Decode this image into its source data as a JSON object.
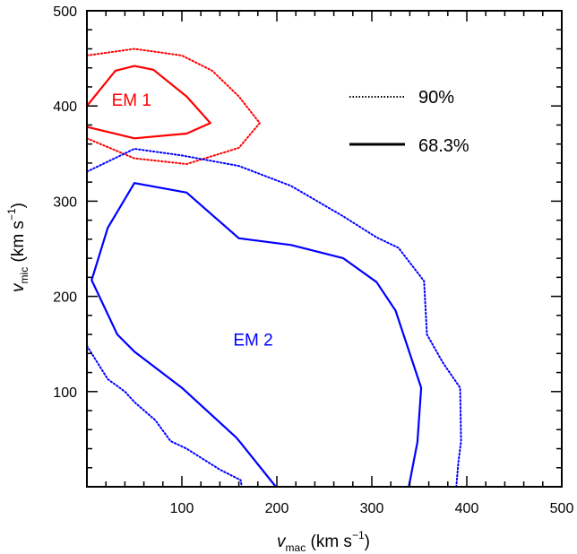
{
  "chart_data": {
    "type": "line",
    "xlabel": {
      "symbol": "v",
      "sub": "mac",
      "unit_pre": " (km s",
      "sup": "−1",
      "unit_post": ")"
    },
    "ylabel": {
      "symbol": "v",
      "sub": "mic",
      "unit_pre": " (km s",
      "sup": "−1",
      "unit_post": ")"
    },
    "xlim": [
      0,
      500
    ],
    "ylim": [
      0,
      500
    ],
    "xticks": [
      100,
      200,
      300,
      400,
      500
    ],
    "xtick_labels": [
      "100",
      "200",
      "300",
      "400",
      "500"
    ],
    "yticks": [
      100,
      200,
      300,
      400,
      500
    ],
    "ytick_labels": [
      "100",
      "200",
      "300",
      "400",
      "500"
    ],
    "minor_step": 20,
    "grid": false,
    "legend": {
      "placement": "top-right",
      "entries": [
        {
          "label": "90%",
          "style": "dotted"
        },
        {
          "label": "68.3%",
          "style": "solid"
        }
      ]
    },
    "labels": [
      {
        "text": "EM 1",
        "x": 47,
        "y": 407,
        "color": "#ff0000"
      },
      {
        "text": "EM 2",
        "x": 175,
        "y": 155,
        "color": "#0000ff"
      }
    ],
    "series": [
      {
        "group": "EM 1",
        "level": "68.3%",
        "style": "solid",
        "color": "#ff0000",
        "x": [
          0,
          30,
          50,
          70,
          105,
          130,
          105,
          50,
          0
        ],
        "y": [
          400,
          437,
          442,
          438,
          410,
          382,
          371,
          366,
          378
        ]
      },
      {
        "group": "EM 1",
        "level": "90%",
        "style": "dotted",
        "color": "#ff0000",
        "x": [
          0,
          50,
          100,
          132,
          160,
          182,
          160,
          105,
          50,
          0
        ],
        "y": [
          453,
          460,
          453,
          437,
          410,
          382,
          356,
          339,
          345,
          366
        ]
      },
      {
        "group": "EM 2",
        "level": "68.3%",
        "style": "solid",
        "color": "#0000ff",
        "x": [
          199,
          162,
          157,
          100,
          50,
          32,
          5,
          22,
          50,
          105,
          160,
          215,
          270,
          305,
          325,
          352,
          348,
          339
        ],
        "y": [
          0,
          46,
          52,
          104,
          142,
          160,
          217,
          272,
          319,
          309,
          261,
          254,
          240,
          215,
          185,
          104,
          47,
          0
        ]
      },
      {
        "group": "EM 2",
        "level": "90%",
        "style": "dotted",
        "color": "#0000ff",
        "x": [
          0,
          50,
          100,
          160,
          215,
          270,
          305,
          328,
          355,
          358,
          375,
          393,
          394,
          391,
          389
        ],
        "y": [
          331,
          355,
          348,
          337,
          316,
          284,
          262,
          251,
          216,
          160,
          130,
          104,
          48,
          25,
          0
        ]
      },
      {
        "group": "EM 2",
        "level": "90%",
        "style": "dotted",
        "color": "#0000ff",
        "x": [
          0,
          22,
          40,
          50,
          72,
          88,
          105,
          140,
          162,
          163
        ],
        "y": [
          148,
          113,
          100,
          89,
          70,
          48,
          40,
          18,
          7,
          0
        ]
      }
    ]
  }
}
